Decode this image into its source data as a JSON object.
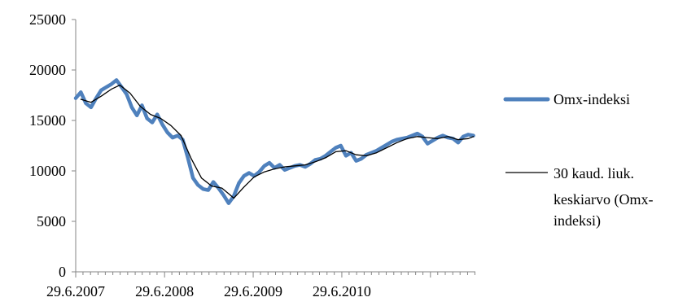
{
  "chart_data": {
    "type": "line",
    "title": "",
    "xlabel": "",
    "ylabel": "",
    "ylim": [
      0,
      25000
    ],
    "y_ticks": [
      0,
      5000,
      10000,
      15000,
      20000,
      25000
    ],
    "y_tick_labels": [
      "0",
      "5000",
      "10000",
      "15000",
      "20000",
      "25000"
    ],
    "x_tick_labels": [
      "29.6.2007",
      "29.6.2008",
      "29.6.2009",
      "29.6.2010"
    ],
    "x_range": [
      "29.6.2007",
      "31.12.2011"
    ],
    "grid": false,
    "legend_position": "right",
    "series": [
      {
        "name": "Omx-indeksi",
        "color": "#4f81bd",
        "style": "thick",
        "points": [
          [
            "2007-06-29",
            17200
          ],
          [
            "2007-07-20",
            17800
          ],
          [
            "2007-08-10",
            16700
          ],
          [
            "2007-08-31",
            16300
          ],
          [
            "2007-09-21",
            17200
          ],
          [
            "2007-10-12",
            18000
          ],
          [
            "2007-11-02",
            18300
          ],
          [
            "2007-11-23",
            18600
          ],
          [
            "2007-12-14",
            19000
          ],
          [
            "2008-01-04",
            18300
          ],
          [
            "2008-01-25",
            17600
          ],
          [
            "2008-02-15",
            16300
          ],
          [
            "2008-03-07",
            15500
          ],
          [
            "2008-03-28",
            16500
          ],
          [
            "2008-04-18",
            15200
          ],
          [
            "2008-05-09",
            14800
          ],
          [
            "2008-05-30",
            15600
          ],
          [
            "2008-06-20",
            14600
          ],
          [
            "2008-07-11",
            13800
          ],
          [
            "2008-08-01",
            13300
          ],
          [
            "2008-08-22",
            13500
          ],
          [
            "2008-09-12",
            13100
          ],
          [
            "2008-10-03",
            11300
          ],
          [
            "2008-10-24",
            9300
          ],
          [
            "2008-11-14",
            8600
          ],
          [
            "2008-12-05",
            8200
          ],
          [
            "2008-12-26",
            8100
          ],
          [
            "2009-01-16",
            8900
          ],
          [
            "2009-02-06",
            8300
          ],
          [
            "2009-02-27",
            7600
          ],
          [
            "2009-03-20",
            6800
          ],
          [
            "2009-04-10",
            7500
          ],
          [
            "2009-05-01",
            8800
          ],
          [
            "2009-05-22",
            9500
          ],
          [
            "2009-06-12",
            9800
          ],
          [
            "2009-07-03",
            9500
          ],
          [
            "2009-07-24",
            9900
          ],
          [
            "2009-08-14",
            10500
          ],
          [
            "2009-09-04",
            10800
          ],
          [
            "2009-09-25",
            10300
          ],
          [
            "2009-10-16",
            10600
          ],
          [
            "2009-11-06",
            10100
          ],
          [
            "2009-11-27",
            10300
          ],
          [
            "2009-12-18",
            10500
          ],
          [
            "2010-01-08",
            10600
          ],
          [
            "2010-01-29",
            10400
          ],
          [
            "2010-02-19",
            10700
          ],
          [
            "2010-03-12",
            11100
          ],
          [
            "2010-04-02",
            11200
          ],
          [
            "2010-04-23",
            11500
          ],
          [
            "2010-05-14",
            11900
          ],
          [
            "2010-06-04",
            12300
          ],
          [
            "2010-06-25",
            12500
          ],
          [
            "2010-07-16",
            11500
          ],
          [
            "2010-08-06",
            11800
          ],
          [
            "2010-08-27",
            11000
          ],
          [
            "2010-09-17",
            11200
          ],
          [
            "2010-10-08",
            11600
          ],
          [
            "2010-10-29",
            11800
          ],
          [
            "2010-11-19",
            12000
          ],
          [
            "2010-12-10",
            12300
          ],
          [
            "2010-12-31",
            12600
          ],
          [
            "2011-01-21",
            12900
          ],
          [
            "2011-02-11",
            13100
          ],
          [
            "2011-03-04",
            13200
          ],
          [
            "2011-03-25",
            13300
          ],
          [
            "2011-04-15",
            13500
          ],
          [
            "2011-05-06",
            13700
          ],
          [
            "2011-05-27",
            13400
          ],
          [
            "2011-06-17",
            12700
          ],
          [
            "2011-07-08",
            13000
          ],
          [
            "2011-07-29",
            13300
          ],
          [
            "2011-08-19",
            13500
          ],
          [
            "2011-09-09",
            13300
          ],
          [
            "2011-09-30",
            13200
          ],
          [
            "2011-10-21",
            12800
          ],
          [
            "2011-11-11",
            13400
          ],
          [
            "2011-12-02",
            13600
          ],
          [
            "2011-12-23",
            13500
          ]
        ]
      },
      {
        "name": "30 kaud. liuk. keskiarvo (Omx-indeksi)",
        "color": "#000000",
        "style": "thin",
        "points": [
          [
            "2007-07-20",
            17100
          ],
          [
            "2007-08-31",
            16800
          ],
          [
            "2007-10-12",
            17400
          ],
          [
            "2007-11-23",
            18100
          ],
          [
            "2007-12-28",
            18500
          ],
          [
            "2008-02-08",
            17700
          ],
          [
            "2008-03-21",
            16400
          ],
          [
            "2008-05-02",
            15600
          ],
          [
            "2008-06-13",
            15200
          ],
          [
            "2008-07-25",
            14500
          ],
          [
            "2008-09-05",
            13500
          ],
          [
            "2008-10-17",
            11200
          ],
          [
            "2008-11-28",
            9300
          ],
          [
            "2009-01-09",
            8500
          ],
          [
            "2009-02-20",
            8300
          ],
          [
            "2009-03-27",
            7600
          ],
          [
            "2009-04-10",
            7300
          ],
          [
            "2009-05-22",
            8400
          ],
          [
            "2009-07-03",
            9400
          ],
          [
            "2009-08-14",
            9900
          ],
          [
            "2009-09-25",
            10200
          ],
          [
            "2009-11-06",
            10400
          ],
          [
            "2009-12-18",
            10500
          ],
          [
            "2010-01-29",
            10600
          ],
          [
            "2010-03-12",
            10900
          ],
          [
            "2010-04-23",
            11300
          ],
          [
            "2010-06-04",
            11900
          ],
          [
            "2010-07-16",
            12000
          ],
          [
            "2010-08-27",
            11600
          ],
          [
            "2010-10-08",
            11500
          ],
          [
            "2010-11-19",
            11800
          ],
          [
            "2010-12-31",
            12300
          ],
          [
            "2011-02-11",
            12800
          ],
          [
            "2011-03-25",
            13200
          ],
          [
            "2011-05-06",
            13400
          ],
          [
            "2011-06-17",
            13300
          ],
          [
            "2011-07-29",
            13200
          ],
          [
            "2011-09-09",
            13400
          ],
          [
            "2011-10-21",
            13100
          ],
          [
            "2011-12-02",
            13200
          ],
          [
            "2011-12-23",
            13400
          ]
        ]
      }
    ],
    "legend": [
      {
        "label": "Omx-indeksi",
        "color": "#4f81bd",
        "style": "thick"
      },
      {
        "label_lines": [
          "30 kaud. liuk.",
          "keskiarvo (Omx-",
          "indeksi)"
        ],
        "color": "#000000",
        "style": "thin"
      }
    ],
    "colors": {
      "axis": "#868686",
      "omx": "#4f81bd",
      "moving_average": "#000000"
    }
  }
}
